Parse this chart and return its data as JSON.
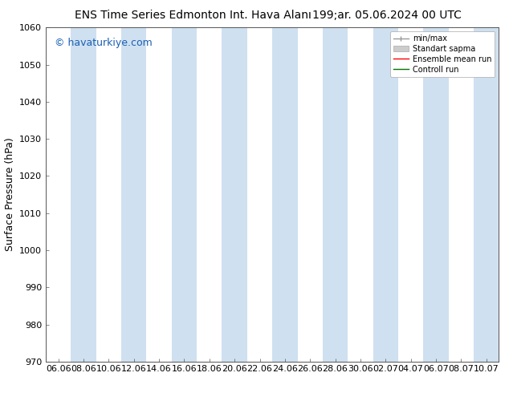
{
  "title_left": "ENS Time Series Edmonton Int. Hava Alanı",
  "title_right": "199;ar. 05.06.2024 00 UTC",
  "ylabel": "Surface Pressure (hPa)",
  "ylim": [
    970,
    1060
  ],
  "yticks": [
    970,
    980,
    990,
    1000,
    1010,
    1020,
    1030,
    1040,
    1050,
    1060
  ],
  "x_labels": [
    "06.06",
    "08.06",
    "10.06",
    "12.06",
    "14.06",
    "16.06",
    "18.06",
    "20.06",
    "22.06",
    "24.06",
    "26.06",
    "28.06",
    "30.06",
    "02.07",
    "04.07",
    "06.07",
    "08.07",
    "10.07"
  ],
  "watermark": "© havaturkiye.com",
  "band_color": "#cfe0f0",
  "band_alpha": 1.0,
  "background_color": "#ffffff",
  "legend_items": [
    {
      "label": "min/max",
      "color": "#999999",
      "lw": 1.0
    },
    {
      "label": "Standart sapma",
      "color": "#cccccc",
      "lw": 5
    },
    {
      "label": "Ensemble mean run",
      "color": "#ff0000",
      "lw": 1.0
    },
    {
      "label": "Controll run",
      "color": "#007700",
      "lw": 1.0
    }
  ],
  "title_fontsize": 10,
  "ylabel_fontsize": 9,
  "tick_fontsize": 8,
  "watermark_color": "#1a5fb4",
  "watermark_fontsize": 9
}
